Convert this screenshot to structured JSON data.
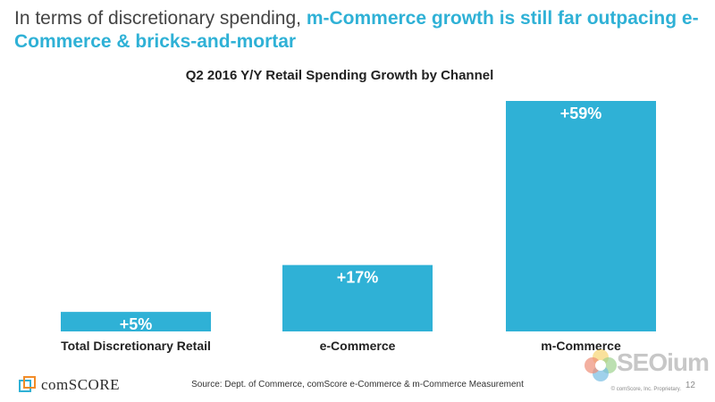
{
  "headline": {
    "prefix": "In terms of discretionary spending, ",
    "accent": "m-Commerce growth is still far outpacing e-Commerce & bricks-and-mortar"
  },
  "chart_data": {
    "type": "bar",
    "title": "Q2 2016 Y/Y Retail Spending Growth by Channel",
    "categories": [
      "Total Discretionary Retail",
      "e-Commerce",
      "m-Commerce"
    ],
    "values": [
      5,
      17,
      59
    ],
    "value_labels": [
      "+5%",
      "+17%",
      "+59%"
    ],
    "xlabel": "",
    "ylabel": "",
    "ylim": [
      0,
      59
    ],
    "grid": false,
    "bar_color": "#2fb1d6"
  },
  "footer": {
    "logo_text": "comSCORE",
    "source": "Source: Dept. of Commerce, comScore e-Commerce & m-Commerce Measurement",
    "copyright": "© comScore, Inc. Proprietary.",
    "page_number": "12",
    "watermark_text": "SEOium"
  },
  "colors": {
    "accent": "#2fb1d6",
    "headline_text": "#444444",
    "logo_orange": "#f28c28",
    "logo_blue": "#2fb1d6"
  }
}
